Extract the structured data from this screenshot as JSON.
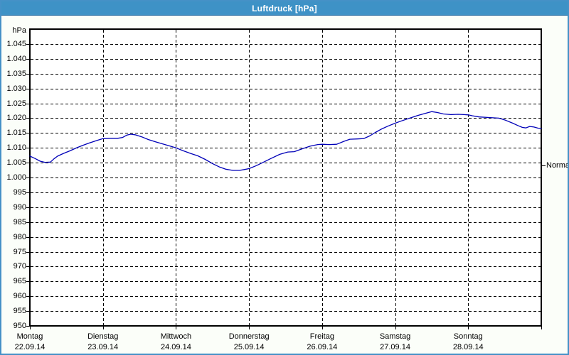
{
  "window": {
    "title": "Luftdruck [hPa]"
  },
  "colors": {
    "titlebar": "#3e92c6",
    "titlebar_underline": "#2168a0",
    "window_border": "#4591c7",
    "background": "#fbfef9",
    "plot_background": "#ffffff",
    "grid": "#000000",
    "text": "#000000",
    "title_text": "#ffffff",
    "line": "#0000b8"
  },
  "chart_data": {
    "type": "line",
    "title": "Luftdruck [hPa]",
    "y_unit_label": "hPa",
    "xlabel": "",
    "ylabel": "",
    "ylim": [
      950,
      1050
    ],
    "ytick_step": 5,
    "grid": "dashed",
    "legend_position": "none",
    "x_range_days": [
      0,
      7
    ],
    "yticks": [
      {
        "value": 1045,
        "label": "1.045"
      },
      {
        "value": 1040,
        "label": "1.040"
      },
      {
        "value": 1035,
        "label": "1.035"
      },
      {
        "value": 1030,
        "label": "1.030"
      },
      {
        "value": 1025,
        "label": "1.025"
      },
      {
        "value": 1020,
        "label": "1.020"
      },
      {
        "value": 1015,
        "label": "1.015"
      },
      {
        "value": 1010,
        "label": "1.010"
      },
      {
        "value": 1005,
        "label": "1.005"
      },
      {
        "value": 1000,
        "label": "1.000"
      },
      {
        "value": 995,
        "label": "995"
      },
      {
        "value": 990,
        "label": "990"
      },
      {
        "value": 985,
        "label": "985"
      },
      {
        "value": 980,
        "label": "980"
      },
      {
        "value": 975,
        "label": "975"
      },
      {
        "value": 970,
        "label": "970"
      },
      {
        "value": 965,
        "label": "965"
      },
      {
        "value": 960,
        "label": "960"
      },
      {
        "value": 955,
        "label": "955"
      },
      {
        "value": 950,
        "label": "950"
      }
    ],
    "days": [
      {
        "name": "Montag",
        "date": "22.09.14"
      },
      {
        "name": "Dienstag",
        "date": "23.09.14"
      },
      {
        "name": "Mittwoch",
        "date": "24.09.14"
      },
      {
        "name": "Donnerstag",
        "date": "25.09.14"
      },
      {
        "name": "Freitag",
        "date": "26.09.14"
      },
      {
        "name": "Samstag",
        "date": "27.09.14"
      },
      {
        "name": "Sonntag",
        "date": "28.09.14"
      }
    ],
    "normal_marker": {
      "label": "Normal",
      "value": 1004
    },
    "series": [
      {
        "name": "Luftdruck",
        "color": "#0000b8",
        "points": [
          [
            0.0,
            1007.2
          ],
          [
            0.07,
            1006.4
          ],
          [
            0.14,
            1005.5
          ],
          [
            0.21,
            1005.1
          ],
          [
            0.28,
            1005.2
          ],
          [
            0.33,
            1006.3
          ],
          [
            0.38,
            1007.2
          ],
          [
            0.46,
            1008.1
          ],
          [
            0.55,
            1009.0
          ],
          [
            0.63,
            1009.9
          ],
          [
            0.72,
            1010.8
          ],
          [
            0.81,
            1011.6
          ],
          [
            0.92,
            1012.5
          ],
          [
            1.0,
            1013.1
          ],
          [
            1.1,
            1013.2
          ],
          [
            1.2,
            1013.2
          ],
          [
            1.27,
            1013.5
          ],
          [
            1.33,
            1014.3
          ],
          [
            1.38,
            1014.6
          ],
          [
            1.44,
            1014.4
          ],
          [
            1.53,
            1013.7
          ],
          [
            1.62,
            1012.8
          ],
          [
            1.72,
            1012.0
          ],
          [
            1.82,
            1011.3
          ],
          [
            1.92,
            1010.6
          ],
          [
            2.0,
            1010.0
          ],
          [
            2.1,
            1009.0
          ],
          [
            2.2,
            1008.1
          ],
          [
            2.3,
            1007.3
          ],
          [
            2.4,
            1006.1
          ],
          [
            2.5,
            1004.7
          ],
          [
            2.6,
            1003.5
          ],
          [
            2.68,
            1002.8
          ],
          [
            2.78,
            1002.4
          ],
          [
            2.87,
            1002.4
          ],
          [
            2.94,
            1002.7
          ],
          [
            3.0,
            1003.0
          ],
          [
            3.1,
            1004.0
          ],
          [
            3.2,
            1005.2
          ],
          [
            3.3,
            1006.4
          ],
          [
            3.42,
            1007.8
          ],
          [
            3.53,
            1008.6
          ],
          [
            3.62,
            1008.7
          ],
          [
            3.72,
            1009.6
          ],
          [
            3.84,
            1010.6
          ],
          [
            3.94,
            1011.1
          ],
          [
            4.0,
            1011.2
          ],
          [
            4.1,
            1011.1
          ],
          [
            4.2,
            1011.2
          ],
          [
            4.3,
            1012.2
          ],
          [
            4.38,
            1012.9
          ],
          [
            4.48,
            1013.0
          ],
          [
            4.57,
            1013.1
          ],
          [
            4.65,
            1014.0
          ],
          [
            4.73,
            1015.2
          ],
          [
            4.81,
            1016.3
          ],
          [
            4.9,
            1017.3
          ],
          [
            5.0,
            1018.3
          ],
          [
            5.09,
            1019.1
          ],
          [
            5.2,
            1020.0
          ],
          [
            5.31,
            1020.9
          ],
          [
            5.41,
            1021.6
          ],
          [
            5.5,
            1022.2
          ],
          [
            5.58,
            1021.9
          ],
          [
            5.66,
            1021.4
          ],
          [
            5.76,
            1021.2
          ],
          [
            5.86,
            1021.3
          ],
          [
            5.94,
            1021.2
          ],
          [
            6.0,
            1021.1
          ],
          [
            6.06,
            1020.8
          ],
          [
            6.15,
            1020.4
          ],
          [
            6.3,
            1020.2
          ],
          [
            6.42,
            1020.0
          ],
          [
            6.51,
            1019.3
          ],
          [
            6.61,
            1018.3
          ],
          [
            6.68,
            1017.5
          ],
          [
            6.74,
            1016.9
          ],
          [
            6.79,
            1016.7
          ],
          [
            6.84,
            1017.2
          ],
          [
            6.9,
            1017.0
          ],
          [
            6.96,
            1016.6
          ],
          [
            7.0,
            1016.5
          ]
        ]
      }
    ]
  }
}
